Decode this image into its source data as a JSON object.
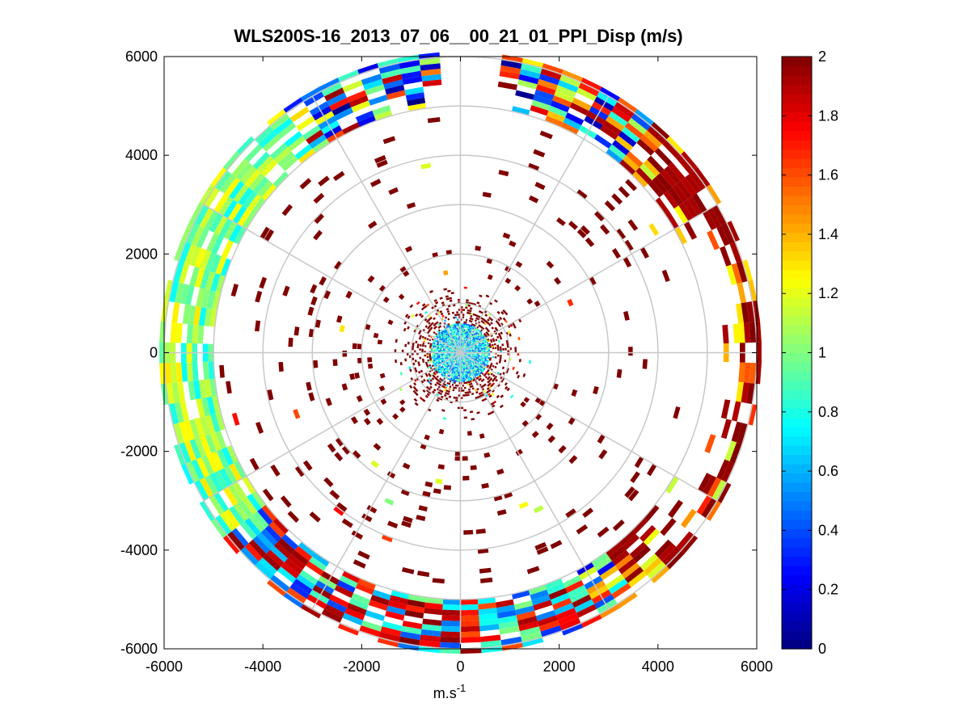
{
  "chart_data": {
    "type": "heatmap",
    "subtype": "polar-ppi",
    "title": "WLS200S-16_2013_07_06__00_21_01_PPI_Disp (m/s)",
    "xlabel": "m.s",
    "xlabel_superscript": "-1",
    "ylabel": "",
    "xlim": [
      -6000,
      6000
    ],
    "ylim": [
      -6000,
      6000
    ],
    "xticks": [
      -6000,
      -4000,
      -2000,
      0,
      2000,
      4000,
      6000
    ],
    "yticks": [
      6000,
      4000,
      2000,
      0,
      -2000,
      -4000,
      -6000
    ],
    "xtick_labels": [
      "-6000",
      "-4000",
      "-2000",
      "0",
      "2000",
      "4000",
      "6000"
    ],
    "ytick_labels": [
      "6000",
      "4000",
      "2000",
      "0",
      "-2000",
      "-4000",
      "-6000"
    ],
    "polar_grid_radii": [
      1000,
      2000,
      3000,
      4000,
      5000,
      6000
    ],
    "polar_grid_angles_deg": [
      0,
      30,
      60,
      90,
      120,
      150,
      180,
      210,
      240,
      270,
      300,
      330
    ],
    "max_range": 6000,
    "colorbar": {
      "colormap": "jet",
      "min": 0,
      "max": 2,
      "ticks": [
        0,
        0.2,
        0.4,
        0.6,
        0.8,
        1,
        1.2,
        1.4,
        1.6,
        1.8,
        2
      ],
      "tick_labels": [
        "0",
        "0.2",
        "0.4",
        "0.6",
        "0.8",
        "1",
        "1.2",
        "1.4",
        "1.6",
        "1.8",
        "2"
      ]
    },
    "regions": [
      {
        "name": "near-range core",
        "range": [
          0,
          600
        ],
        "approx_value": 0.7
      },
      {
        "name": "near-range ring",
        "range": [
          600,
          1500
        ],
        "approx_value": 2.0
      },
      {
        "name": "mid-range sparse",
        "range": [
          1500,
          4800
        ],
        "approx_value": 2.0
      },
      {
        "name": "outer band",
        "range": [
          5000,
          6000
        ],
        "approx_value_range": [
          0.4,
          2.0
        ]
      }
    ],
    "gap_azimuths_deg": [
      [
        -5,
        5
      ]
    ]
  }
}
